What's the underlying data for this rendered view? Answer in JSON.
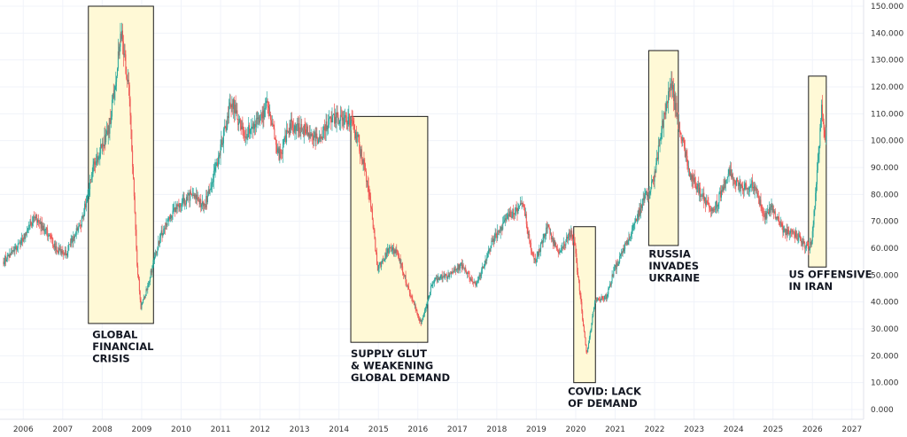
{
  "chart_data": {
    "type": "candlestick",
    "title": "",
    "xlabel": "",
    "ylabel": "",
    "ylim": [
      0,
      150
    ],
    "xlim": [
      2005.5,
      2027.5
    ],
    "grid": true,
    "y_ticks": [
      "0.000",
      "10.000",
      "20.000",
      "30.000",
      "40.000",
      "50.000",
      "60.000",
      "70.000",
      "80.000",
      "90.000",
      "100.000",
      "110.000",
      "120.000",
      "130.000",
      "140.000",
      "150.000"
    ],
    "x_ticks": [
      "2006",
      "2007",
      "2008",
      "2009",
      "2010",
      "2011",
      "2012",
      "2013",
      "2014",
      "2015",
      "2016",
      "2017",
      "2018",
      "2019",
      "2020",
      "2021",
      "2022",
      "2023",
      "2024",
      "2025",
      "2026",
      "2027"
    ],
    "colors": {
      "up": "#26a69a",
      "down": "#ef5350",
      "highlight_fill": "#fff9d6",
      "highlight_stroke": "#1a1a1a"
    },
    "price_path": [
      [
        2005.5,
        55
      ],
      [
        2006.0,
        63
      ],
      [
        2006.3,
        72
      ],
      [
        2006.6,
        66
      ],
      [
        2006.9,
        59
      ],
      [
        2007.1,
        58
      ],
      [
        2007.5,
        70
      ],
      [
        2007.8,
        90
      ],
      [
        2008.2,
        105
      ],
      [
        2008.5,
        140
      ],
      [
        2008.7,
        118
      ],
      [
        2008.9,
        55
      ],
      [
        2009.0,
        38
      ],
      [
        2009.1,
        42
      ],
      [
        2009.5,
        65
      ],
      [
        2009.9,
        75
      ],
      [
        2010.3,
        80
      ],
      [
        2010.6,
        75
      ],
      [
        2010.9,
        90
      ],
      [
        2011.3,
        115
      ],
      [
        2011.6,
        102
      ],
      [
        2011.9,
        106
      ],
      [
        2012.2,
        113
      ],
      [
        2012.5,
        94
      ],
      [
        2012.8,
        106
      ],
      [
        2013.2,
        104
      ],
      [
        2013.5,
        100
      ],
      [
        2013.8,
        108
      ],
      [
        2014.3,
        108
      ],
      [
        2014.5,
        100
      ],
      [
        2014.8,
        80
      ],
      [
        2015.0,
        52
      ],
      [
        2015.3,
        60
      ],
      [
        2015.5,
        58
      ],
      [
        2015.8,
        44
      ],
      [
        2016.1,
        32
      ],
      [
        2016.4,
        48
      ],
      [
        2016.8,
        50
      ],
      [
        2017.1,
        54
      ],
      [
        2017.5,
        46
      ],
      [
        2017.9,
        62
      ],
      [
        2018.3,
        72
      ],
      [
        2018.7,
        76
      ],
      [
        2018.9,
        58
      ],
      [
        2019.0,
        55
      ],
      [
        2019.3,
        68
      ],
      [
        2019.6,
        58
      ],
      [
        2019.9,
        66
      ],
      [
        2020.0,
        60
      ],
      [
        2020.2,
        33
      ],
      [
        2020.3,
        20
      ],
      [
        2020.5,
        40
      ],
      [
        2020.8,
        42
      ],
      [
        2021.0,
        52
      ],
      [
        2021.4,
        65
      ],
      [
        2021.8,
        80
      ],
      [
        2022.0,
        85
      ],
      [
        2022.2,
        105
      ],
      [
        2022.45,
        122
      ],
      [
        2022.6,
        108
      ],
      [
        2022.9,
        88
      ],
      [
        2023.2,
        80
      ],
      [
        2023.5,
        73
      ],
      [
        2023.9,
        88
      ],
      [
        2024.2,
        83
      ],
      [
        2024.5,
        84
      ],
      [
        2024.8,
        72
      ],
      [
        2025.0,
        75
      ],
      [
        2025.3,
        66
      ],
      [
        2025.6,
        65
      ],
      [
        2025.9,
        60
      ],
      [
        2026.0,
        62
      ],
      [
        2026.15,
        90
      ],
      [
        2026.25,
        112
      ],
      [
        2026.35,
        100
      ]
    ],
    "highlights": [
      {
        "x0": 2007.65,
        "x1": 2009.3,
        "y0": 32,
        "y1": 150
      },
      {
        "x0": 2014.3,
        "x1": 2016.25,
        "y0": 25,
        "y1": 109
      },
      {
        "x0": 2019.95,
        "x1": 2020.5,
        "y0": 10,
        "y1": 68
      },
      {
        "x0": 2021.85,
        "x1": 2022.6,
        "y0": 61,
        "y1": 133.5
      },
      {
        "x0": 2025.9,
        "x1": 2026.35,
        "y0": 53,
        "y1": 124
      }
    ],
    "annotations": [
      {
        "lines": [
          "GLOBAL",
          "FINANCIAL",
          "CRISIS"
        ],
        "x": 2007.75,
        "y": 26.5
      },
      {
        "lines": [
          "SUPPLY GLUT",
          "& WEAKENING",
          "GLOBAL DEMAND"
        ],
        "x": 2014.3,
        "y": 19.5
      },
      {
        "lines": [
          "COVID: LACK",
          "OF DEMAND"
        ],
        "x": 2019.8,
        "y": 5.5
      },
      {
        "lines": [
          "RUSSIA",
          "INVADES",
          "UKRAINE"
        ],
        "x": 2021.85,
        "y": 56.5
      },
      {
        "lines": [
          "US OFFENSIVE",
          "IN IRAN"
        ],
        "x": 2025.4,
        "y": 49
      }
    ]
  }
}
